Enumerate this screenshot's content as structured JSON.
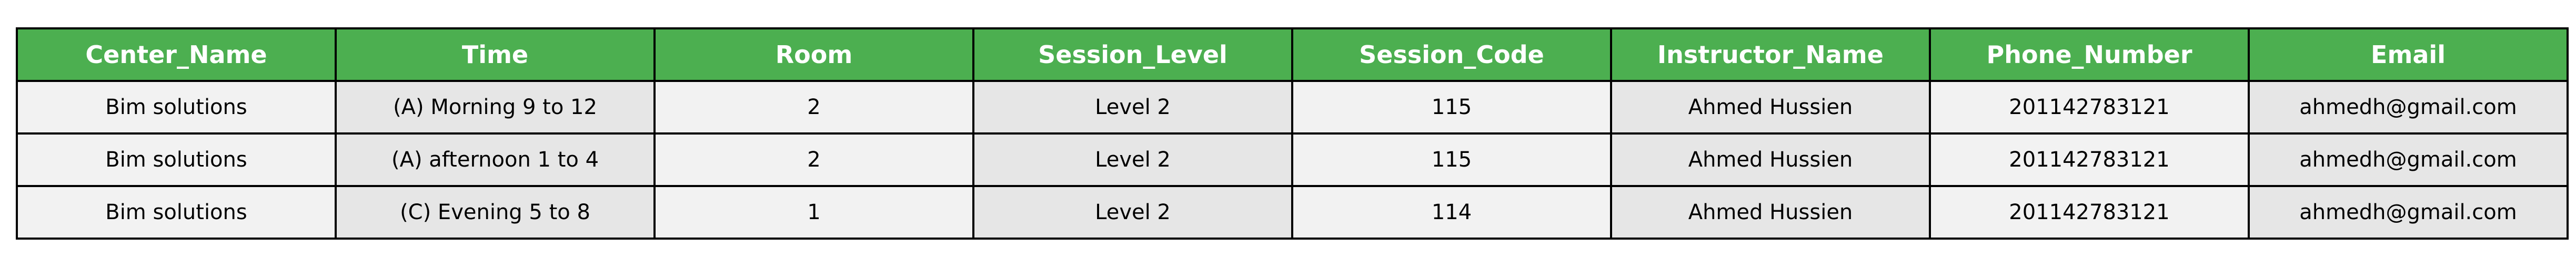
{
  "table": {
    "columns": [
      "Center_Name",
      "Time",
      "Room",
      "Session_Level",
      "Session_Code",
      "Instructor_Name",
      "Phone_Number",
      "Email"
    ],
    "rows": [
      [
        "Bim solutions",
        "(A) Morning 9 to 12",
        "2",
        "Level 2",
        "115",
        "Ahmed Hussien",
        "201142783121",
        "ahmedh@gmail.com"
      ],
      [
        "Bim solutions",
        "(A) afternoon 1 to 4",
        "2",
        "Level 2",
        "115",
        "Ahmed Hussien",
        "201142783121",
        "ahmedh@gmail.com"
      ],
      [
        "Bim solutions",
        "(C) Evening 5 to 8",
        "1",
        "Level 2",
        "114",
        "Ahmed Hussien",
        "201142783121",
        "ahmedh@gmail.com"
      ]
    ]
  },
  "colors": {
    "header_bg": "#4caf50",
    "header_text": "#ffffff",
    "cell_light": "#f2f2f2",
    "cell_dark": "#e6e6e6",
    "border": "#000000"
  }
}
